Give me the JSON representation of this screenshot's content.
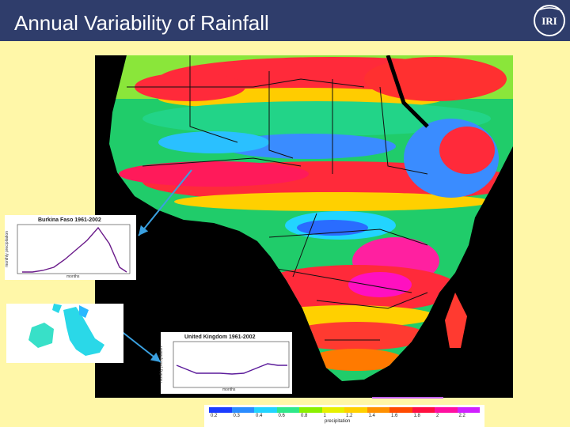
{
  "slide": {
    "title": "Annual Variability of Rainfall",
    "logo_text": "IRI"
  },
  "insets": {
    "burkina": {
      "title": "Burkina Faso 1961-2002",
      "ylabel": "monthly precipitation",
      "xlabel": "months"
    },
    "uk": {
      "title": "United Kingdom 1961-2002",
      "ylabel": "monthly precipitation",
      "xlabel": "months"
    }
  },
  "legend": {
    "label": "precipitation",
    "ticks": [
      "0.2",
      "0.3",
      "0.4",
      "0.6",
      "0.8",
      "1",
      "1.2",
      "1.4",
      "1.6",
      "1.8",
      "2",
      "2.2"
    ],
    "colors": [
      "#1a3cff",
      "#2a8cff",
      "#22d4ff",
      "#2ee88a",
      "#8af000",
      "#e6f000",
      "#ffd000",
      "#ff9000",
      "#ff4a00",
      "#ff1040",
      "#ff10a0",
      "#d020ff"
    ]
  },
  "colors": {
    "header": "#2f3d6b",
    "background": "#fff7a8",
    "arrow": "#3aa0e0"
  }
}
